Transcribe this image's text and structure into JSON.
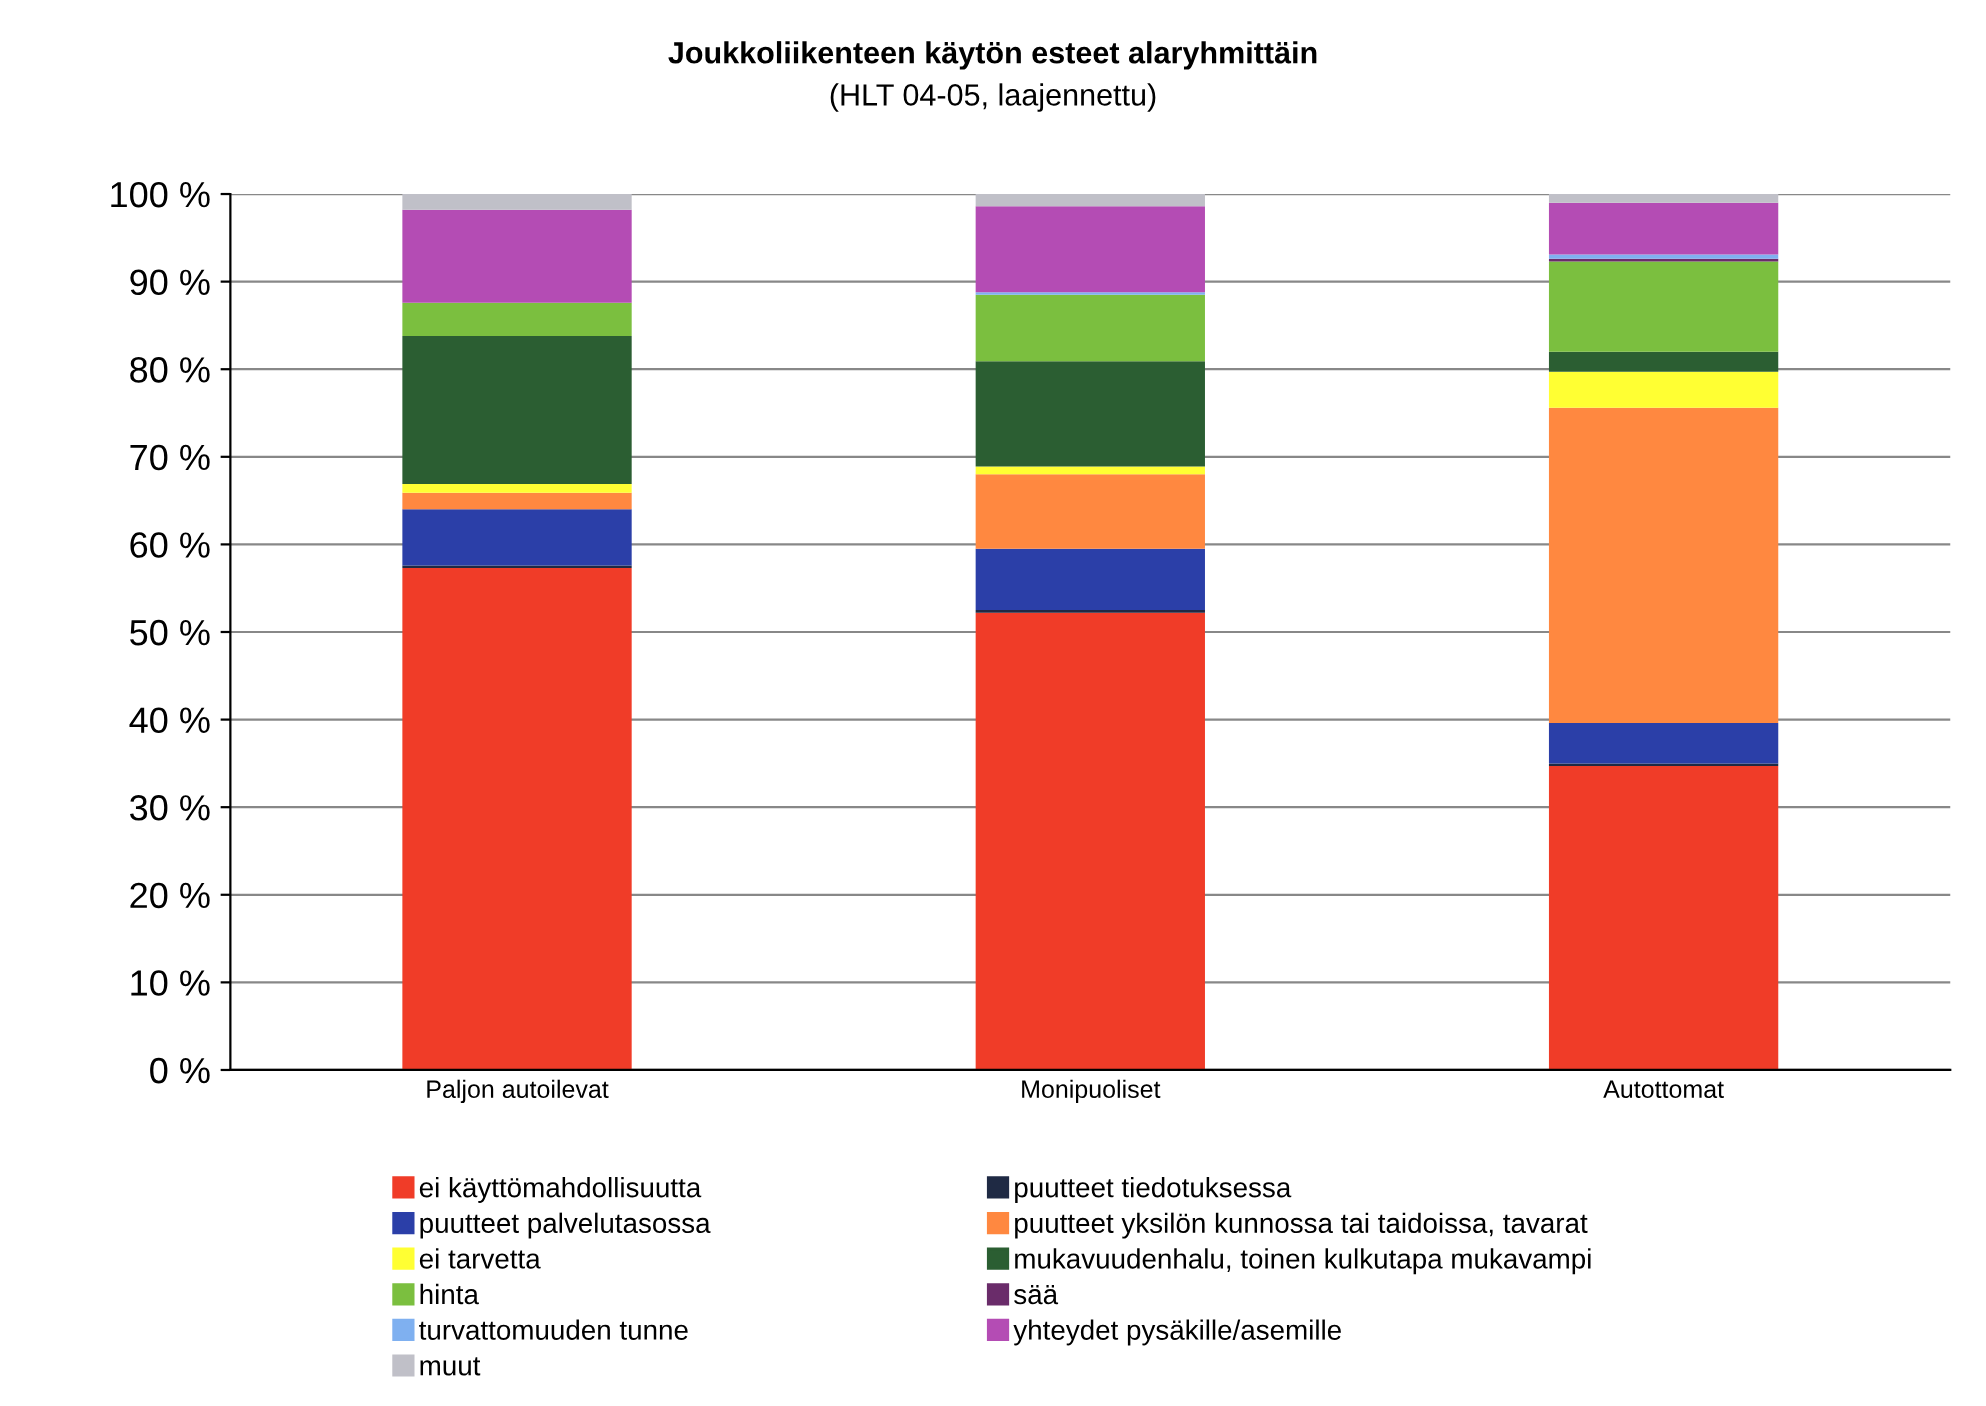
{
  "chart_data": {
    "type": "bar",
    "stacked": true,
    "title": "Joukkoliikenteen käytön esteet alaryhmittäin",
    "subtitle": "(HLT 04-05, laajennettu)",
    "categories": [
      "Paljon autoilevat",
      "Monipuoliset",
      "Autottomat"
    ],
    "series": [
      {
        "name": "ei käyttömahdollisuutta",
        "color": "#f03c28",
        "values": [
          57.3,
          52.2,
          34.7
        ]
      },
      {
        "name": "puutteet tiedotuksessa",
        "color": "#1f2a44",
        "values": [
          0.3,
          0.3,
          0.3
        ]
      },
      {
        "name": "puutteet palvelutasossa",
        "color": "#2b3fa8",
        "values": [
          6.4,
          7.0,
          4.6
        ]
      },
      {
        "name": "puutteet yksilön kunnossa tai taidoissa, tavarat",
        "color": "#ff8840",
        "values": [
          1.9,
          8.5,
          36.0
        ]
      },
      {
        "name": "ei tarvetta",
        "color": "#ffff33",
        "values": [
          1.0,
          0.9,
          4.1
        ]
      },
      {
        "name": "mukavuudenhalu, toinen kulkutapa mukavampi",
        "color": "#2b5e32",
        "values": [
          16.9,
          12.0,
          2.3
        ]
      },
      {
        "name": "hinta",
        "color": "#7bbf3f",
        "values": [
          3.8,
          7.6,
          10.3
        ]
      },
      {
        "name": "sää",
        "color": "#6a2c6a",
        "values": [
          0,
          0,
          0.3
        ]
      },
      {
        "name": "turvattomuuden tunne",
        "color": "#7fb0f0",
        "values": [
          0,
          0.3,
          0.5
        ]
      },
      {
        "name": "yhteydet pysäkille/asemille",
        "color": "#b44cb4",
        "values": [
          10.6,
          9.8,
          5.9
        ]
      },
      {
        "name": "muut",
        "color": "#c0c0c8",
        "values": [
          1.8,
          1.4,
          1.0
        ]
      }
    ],
    "ylim": [
      0,
      100
    ],
    "yticks": [
      {
        "value": 0,
        "label": "0 %"
      },
      {
        "value": 10,
        "label": "10 %"
      },
      {
        "value": 20,
        "label": "20 %"
      },
      {
        "value": 30,
        "label": "30 %"
      },
      {
        "value": 40,
        "label": "40 %"
      },
      {
        "value": 50,
        "label": "50 %"
      },
      {
        "value": 60,
        "label": "60 %"
      },
      {
        "value": 70,
        "label": "70 %"
      },
      {
        "value": 80,
        "label": "80 %"
      },
      {
        "value": 90,
        "label": "90 %"
      },
      {
        "value": 100,
        "label": "100 %"
      }
    ],
    "grid": "y",
    "legend": "bottom"
  }
}
